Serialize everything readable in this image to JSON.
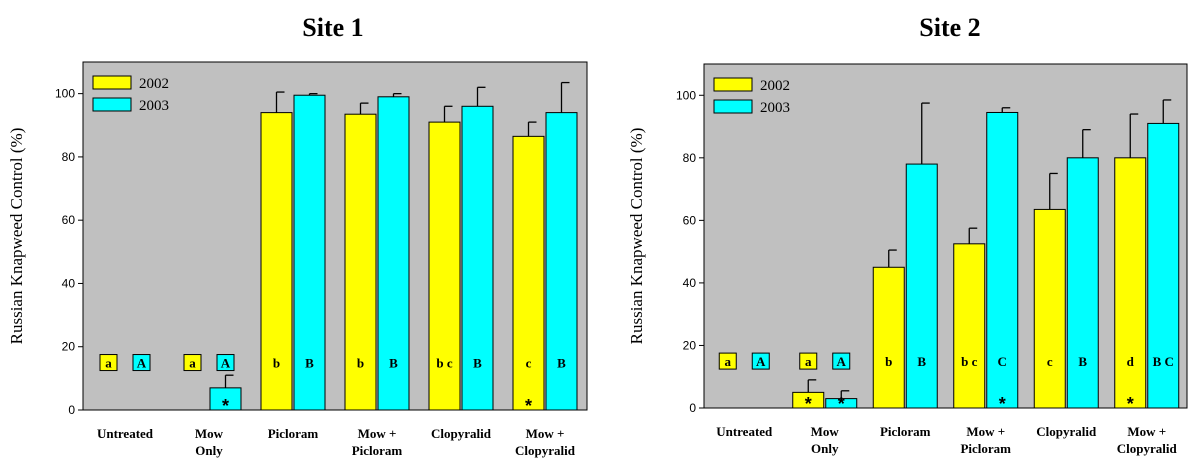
{
  "colors": {
    "2002": "#ffff00",
    "2003": "#00ffff",
    "plot_bg": "#c0c0c0",
    "outline": "#000000"
  },
  "ylabel": "Russian Knapweed Control (%)",
  "chart_data": [
    {
      "type": "bar",
      "title": "Site 1",
      "ylabel": "Russian Knapweed Control (%)",
      "ylim": [
        0,
        110
      ],
      "yticks": [
        0,
        20,
        40,
        60,
        80,
        100
      ],
      "legend": "top-left",
      "categories": [
        [
          "Untreated"
        ],
        [
          "Mow",
          "Only"
        ],
        [
          "Picloram"
        ],
        [
          "Mow +",
          "Picloram"
        ],
        [
          "Clopyralid"
        ],
        [
          "Mow +",
          "Clopyralid"
        ]
      ],
      "series": [
        {
          "name": "2002",
          "values": [
            0,
            0,
            94,
            93.5,
            91,
            86.5
          ],
          "errors": [
            0,
            0,
            6.5,
            3.5,
            5,
            4.5
          ],
          "letters": [
            "a",
            "a",
            "b",
            "b",
            "b c",
            "c"
          ],
          "stars": [
            false,
            false,
            false,
            false,
            false,
            true
          ]
        },
        {
          "name": "2003",
          "values": [
            0,
            7,
            99.5,
            99,
            96,
            94
          ],
          "errors": [
            0,
            4,
            0.5,
            1,
            6,
            9.5
          ],
          "letters": [
            "A",
            "A",
            "B",
            "B",
            "B",
            "B"
          ],
          "stars": [
            false,
            true,
            false,
            false,
            false,
            false
          ]
        }
      ]
    },
    {
      "type": "bar",
      "title": "Site 2",
      "ylabel": "Russian Knapweed Control (%)",
      "ylim": [
        0,
        110
      ],
      "yticks": [
        0,
        20,
        40,
        60,
        80,
        100
      ],
      "legend": "top-left",
      "categories": [
        [
          "Untreated"
        ],
        [
          "Mow",
          "Only"
        ],
        [
          "Picloram"
        ],
        [
          "Mow +",
          "Picloram"
        ],
        [
          "Clopyralid"
        ],
        [
          "Mow +",
          "Clopyralid"
        ]
      ],
      "series": [
        {
          "name": "2002",
          "values": [
            0,
            5,
            45,
            52.5,
            63.5,
            80
          ],
          "errors": [
            0,
            4,
            5.5,
            5,
            11.5,
            14
          ],
          "letters": [
            "a",
            "a",
            "b",
            "b c",
            "c",
            "d"
          ],
          "stars": [
            false,
            true,
            false,
            false,
            false,
            true
          ]
        },
        {
          "name": "2003",
          "values": [
            0,
            3,
            78,
            94.5,
            80,
            91
          ],
          "errors": [
            0,
            2.5,
            19.5,
            1.5,
            9,
            7.5
          ],
          "letters": [
            "A",
            "A",
            "B",
            "C",
            "B",
            "B C"
          ],
          "stars": [
            false,
            true,
            false,
            true,
            false,
            false
          ]
        }
      ]
    }
  ]
}
